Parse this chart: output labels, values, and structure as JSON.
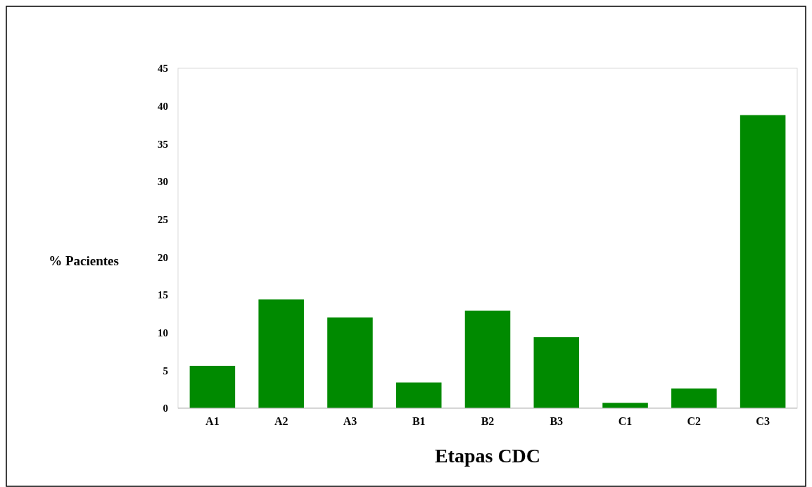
{
  "chart_data": {
    "type": "bar",
    "xlabel": "Etapas CDC",
    "ylabel": "% Pacientes",
    "categories": [
      "A1",
      "A2",
      "A3",
      "B1",
      "B2",
      "B3",
      "C1",
      "C2",
      "C3"
    ],
    "values": [
      5.6,
      14.4,
      12.0,
      3.4,
      12.9,
      9.4,
      0.7,
      2.6,
      38.8
    ],
    "color": "#008a00",
    "ylim": [
      0,
      45
    ],
    "yticks": [
      0,
      5,
      10,
      15,
      20,
      25,
      30,
      35,
      40,
      45
    ],
    "grid": false
  }
}
